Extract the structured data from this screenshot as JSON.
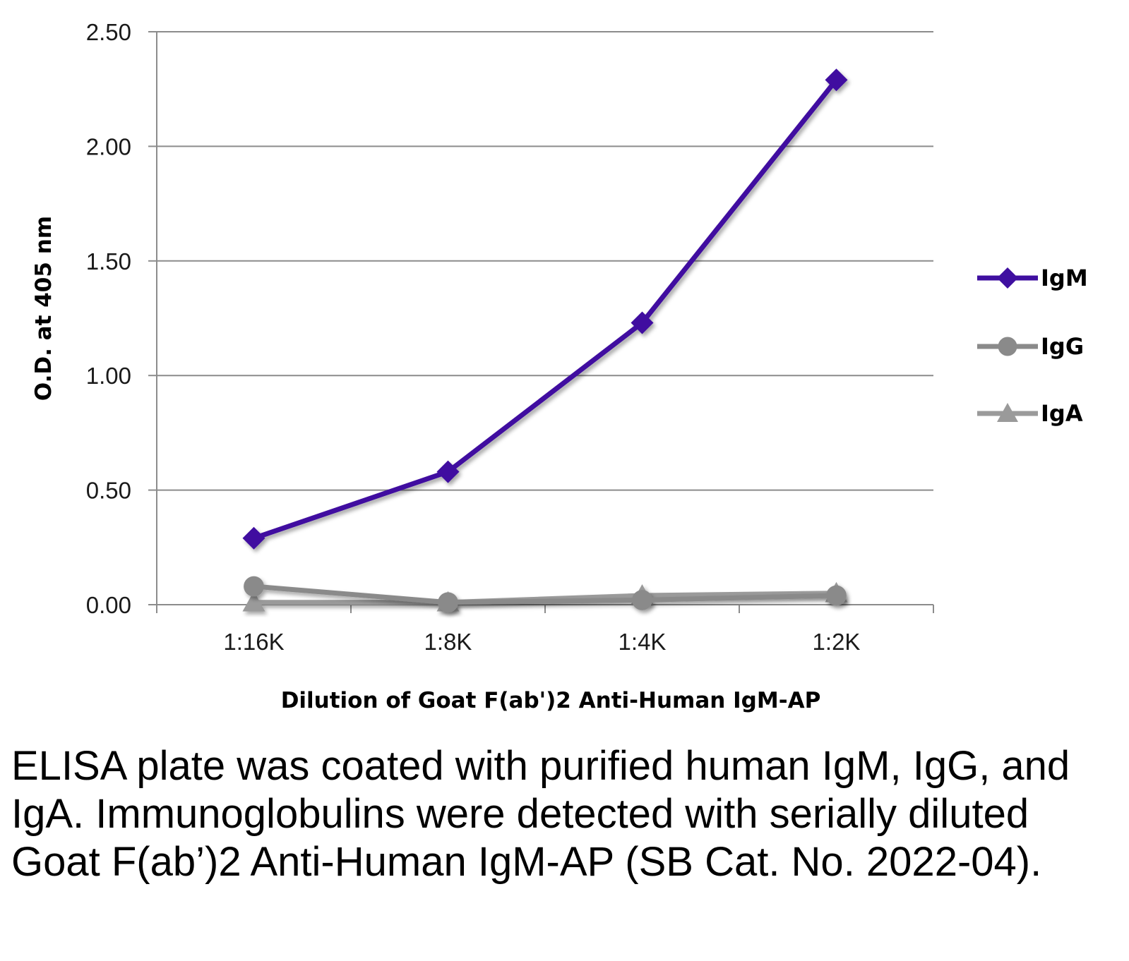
{
  "chart_data": {
    "type": "line",
    "title": "",
    "xlabel": "Dilution of Goat F(ab')2 Anti-Human IgM-AP",
    "ylabel": "O.D. at 405 nm",
    "categories": [
      "1:16K",
      "1:8K",
      "1:4K",
      "1:2K"
    ],
    "ylim": [
      0,
      2.5
    ],
    "yticks": [
      "0.00",
      "0.50",
      "1.00",
      "1.50",
      "2.00",
      "2.50"
    ],
    "ytick_values": [
      0,
      0.5,
      1.0,
      1.5,
      2.0,
      2.5
    ],
    "grid": true,
    "legend_position": "right",
    "series": [
      {
        "name": "IgM",
        "values": [
          0.29,
          0.58,
          1.23,
          2.29
        ],
        "color": "#3f0fa0",
        "marker": "diamond"
      },
      {
        "name": "IgG",
        "values": [
          0.08,
          0.01,
          0.02,
          0.04
        ],
        "color": "#8a8a8a",
        "marker": "circle"
      },
      {
        "name": "IgA",
        "values": [
          0.01,
          0.01,
          0.04,
          0.05
        ],
        "color": "#9a9a9a",
        "marker": "triangle"
      }
    ]
  },
  "caption": "ELISA plate was coated with purified human IgM, IgG, and IgA.  Immunoglobulins were detected with serially diluted Goat F(ab’)2 Anti-Human IgM-AP (SB Cat. No. 2022-04)."
}
